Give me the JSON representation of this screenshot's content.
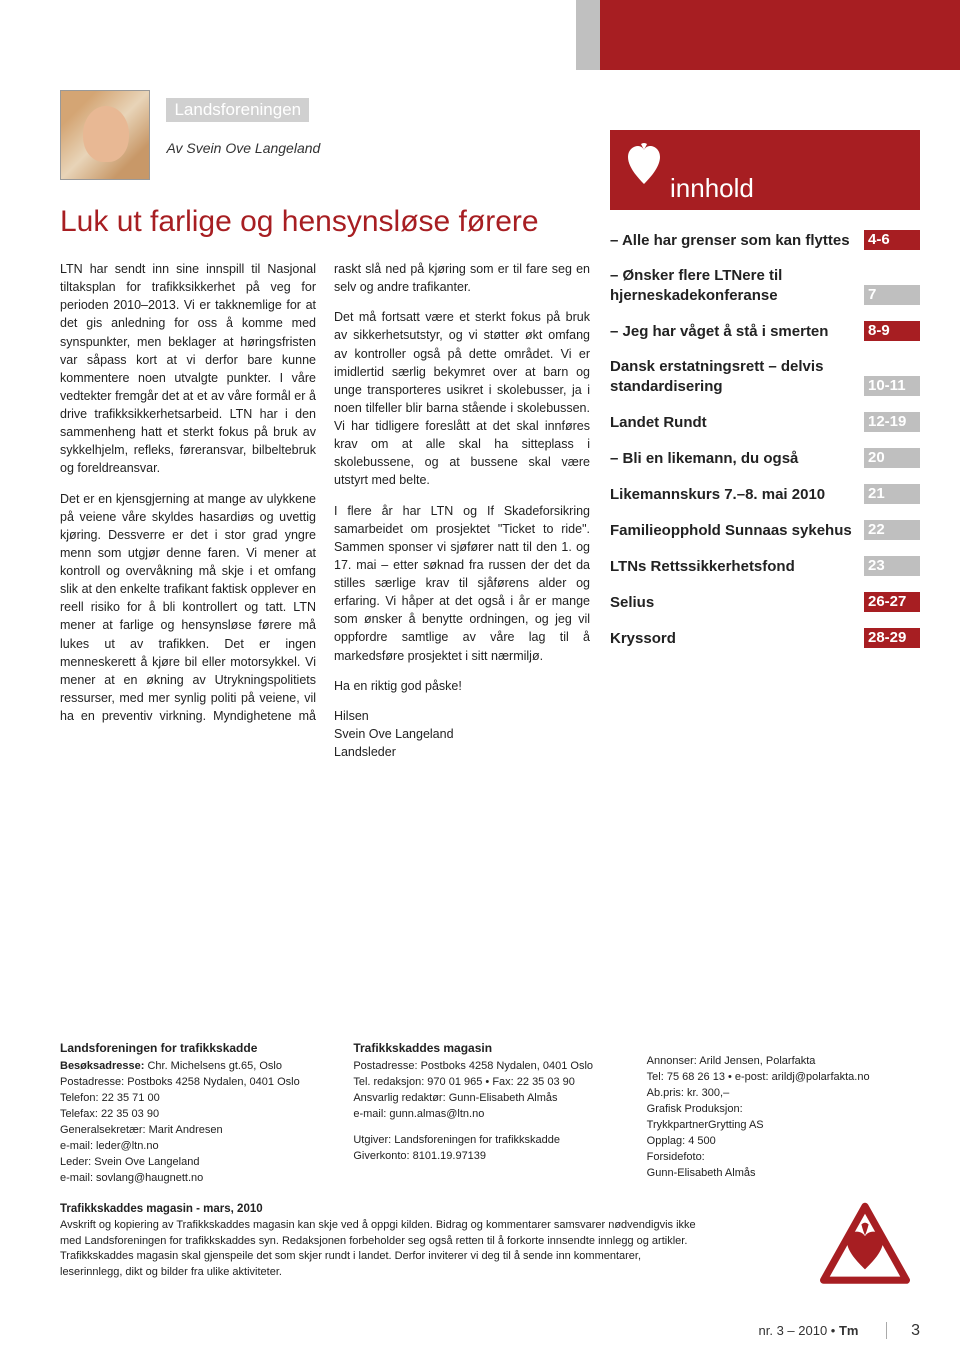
{
  "colors": {
    "brand_red": "#a71e22",
    "grey_bar": "#c0c0c0",
    "toc_grey": "#bfbfbf",
    "text": "#222222",
    "white": "#ffffff"
  },
  "header": {
    "section_label": "Landsforeningen",
    "byline": "Av Svein Ove Langeland"
  },
  "article": {
    "headline": "Luk ut farlige og hensynsløse førere",
    "p1": "LTN har sendt inn sine innspill til Nasjonal tiltaksplan for trafikksikkerhet på veg for perioden 2010–2013. Vi er takknemlige for at det gis anledning for oss å komme med synspunkter, men beklager at høringsfristen var såpass kort at vi derfor bare kunne kommentere noen utvalgte punkter. I våre vedtekter fremgår det at et av våre formål er å drive trafikksikkerhetsarbeid. LTN har i den sammenheng hatt et sterkt fokus på bruk av sykkelhjelm, refleks, føreransvar, bilbeltebruk og foreldreansvar.",
    "p2": "Det er en kjensgjerning at mange av ulykkene på veiene våre skyldes hasardiøs og uvettig kjøring. Dessverre er det i stor grad yngre menn som utgjør denne faren. Vi mener at kontroll og overvåkning må skje i et omfang slik at den enkelte trafikant faktisk opplever en reell risiko for å bli kontrollert og tatt. LTN mener at farlige og hensynsløse førere må lukes ut av trafikken. Det er ingen menneskerett å kjøre bil eller motorsykkel. Vi mener at en økning av Utrykningspolitiets ressurser, med mer synlig politi på veiene, vil ha en preventiv virkning. Myndighetene må raskt slå ned på kjøring som er til fare seg en selv og andre trafikanter.",
    "p3": "Det må fortsatt være et sterkt fokus på bruk av sikkerhetsutstyr, og vi støtter økt omfang av kontroller også på dette området. Vi er imidlertid særlig bekymret over at barn og unge transporteres usikret i skolebusser, ja i noen tilfeller blir barna stående i skolebussen. Vi har tidligere foreslått at det skal innføres krav om at alle skal ha sitteplass i skolebussene, og at bussene skal være utstyrt med belte.",
    "p4": "I flere år har LTN og If Skadeforsikring samarbeidet om prosjektet \"Ticket to ride\". Sammen sponser vi sjøfører natt til den 1. og 17. mai – etter søknad fra russen der det da stilles særlige krav til sjåførens alder og erfaring. Vi håper at det også i år er mange som ønsker å benytte ordningen, og jeg vil oppfordre samtlige av våre lag til å markedsføre prosjektet i sitt nærmiljø.",
    "p5": "Ha en riktig god påske!",
    "p6": "Hilsen",
    "p7": "Svein Ove Langeland",
    "p8": "Landsleder"
  },
  "innhold": {
    "title": "innhold",
    "items": [
      {
        "label": "– Alle har grenser som kan flyttes",
        "page": "4-6",
        "red": true
      },
      {
        "label": "– Ønsker flere LTNere til hjerneskadekonferanse",
        "page": "7",
        "red": false
      },
      {
        "label": "– Jeg har våget å stå i smerten",
        "page": "8-9",
        "red": true
      },
      {
        "label": "Dansk erstatningsrett – delvis standardisering",
        "page": "10-11",
        "red": false
      },
      {
        "label": "Landet Rundt",
        "page": "12-19",
        "red": false
      },
      {
        "label": "– Bli en likemann, du også",
        "page": "20",
        "red": false
      },
      {
        "label": "Likemannskurs 7.–8. mai 2010",
        "page": "21",
        "red": false
      },
      {
        "label": "Familieopphold Sunnaas sykehus",
        "page": "22",
        "red": false
      },
      {
        "label": "LTNs Rettssikkerhetsfond",
        "page": "23",
        "red": false
      },
      {
        "label": "Selius",
        "page": "26-27",
        "red": true
      },
      {
        "label": "Kryssord",
        "page": "28-29",
        "red": true
      }
    ]
  },
  "footer": {
    "col1": {
      "title": "Landsforeningen for trafikkskadde",
      "l1": "Besøksadresse: Chr. Michelsens gt.65, Oslo",
      "l2": "Postadresse: Postboks 4258 Nydalen, 0401 Oslo",
      "l3": "Telefon: 22 35 71 00",
      "l4": "Telefax: 22 35 03 90",
      "l5": "Generalsekretær: Marit Andresen",
      "l6": "e-mail: leder@ltn.no",
      "l7": "Leder: Svein Ove Langeland",
      "l8": "e-mail: sovlang@haugnett.no"
    },
    "col2": {
      "title": "Trafikkskaddes magasin",
      "l1": "Postadresse: Postboks 4258 Nydalen, 0401 Oslo",
      "l2": "Tel. redaksjon: 970 01 965 • Fax: 22 35 03 90",
      "l3": "Ansvarlig redaktør: Gunn-Elisabeth Almås",
      "l4": "e-mail: gunn.almas@ltn.no",
      "l5": "Utgiver: Landsforeningen for trafikkskadde",
      "l6": "Giverkonto: 8101.19.97139"
    },
    "col3": {
      "l1": "Annonser: Arild Jensen, Polarfakta",
      "l2": "Tel: 75 68 26 13 • e-post: arildj@polarfakta.no",
      "l3": "Ab.pris: kr. 300,–",
      "l4": "Grafisk Produksjon:",
      "l5": "TrykkpartnerGrytting AS",
      "l6": "Opplag: 4 500",
      "l7": "Forsidefoto:",
      "l8": "Gunn-Elisabeth Almås"
    },
    "note_title": "Trafikkskaddes magasin - mars, 2010",
    "note_body": "Avskrift og kopiering av Trafikkskaddes magasin kan skje ved å oppgi kilden. Bidrag og kommentarer samsvarer nødvendigvis ikke med Landsforeningen for trafikkskaddes syn. Redaksjonen forbeholder seg også retten til å forkorte innsendte innlegg og artikler. Trafikkskaddes magasin skal gjenspeile det som skjer rundt i landet. Derfor inviterer vi deg til å sende inn kommentarer, leserinnlegg, dikt og bilder fra ulike aktiviteter."
  },
  "page_footer": {
    "issue": "nr. 3 – 2010 •",
    "tm": "Tm",
    "num": "3"
  }
}
